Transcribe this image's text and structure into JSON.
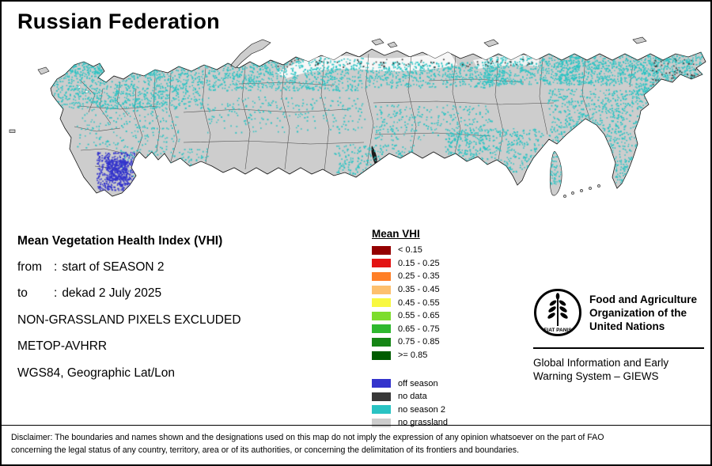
{
  "title": "Russian Federation",
  "info": {
    "heading": "Mean Vegetation Health Index (VHI)",
    "rows": [
      {
        "label": "from",
        "sep": ":",
        "value": "start of SEASON 2"
      },
      {
        "label": "to",
        "sep": ":",
        "value": "dekad 2 July 2025"
      }
    ],
    "lines": [
      "NON-GRASSLAND PIXELS EXCLUDED",
      "METOP-AVHRR",
      "WGS84, Geographic Lat/Lon"
    ]
  },
  "legend": {
    "title": "Mean VHI",
    "vhi_classes": [
      {
        "label": "< 0.15",
        "color": "#940000"
      },
      {
        "label": "0.15 - 0.25",
        "color": "#e31414"
      },
      {
        "label": "0.25 - 0.35",
        "color": "#ff7f27"
      },
      {
        "label": "0.35 - 0.45",
        "color": "#fdc06e"
      },
      {
        "label": "0.45 - 0.55",
        "color": "#f8f840"
      },
      {
        "label": "0.55 - 0.65",
        "color": "#7ddd2d"
      },
      {
        "label": "0.65 - 0.75",
        "color": "#2eb82e"
      },
      {
        "label": "0.75 - 0.85",
        "color": "#158515"
      },
      {
        "label": ">= 0.85",
        "color": "#005c00"
      }
    ],
    "categories": [
      {
        "label": "off season",
        "color": "#3333cc"
      },
      {
        "label": "no data",
        "color": "#383838"
      },
      {
        "label": "no season 2",
        "color": "#29c3c3"
      },
      {
        "label": "no grassland",
        "color": "#cdcdcd"
      }
    ]
  },
  "org": {
    "logo_icon": "fao-emblem",
    "logo_text": "FAO",
    "logo_motto": "FIAT PANIS",
    "name_lines": [
      "Food and Agriculture",
      "Organization of the",
      "United Nations"
    ],
    "subtitle_lines": [
      "Global Information and Early",
      "Warning System – GIEWS"
    ]
  },
  "disclaimer": {
    "lines": [
      "Disclaimer: The boundaries and names shown and the designations used on this map do not imply the expression of any opinion whatsoever on the part of FAO",
      "concerning the legal status of any country, territory, area or of its authorities, or concerning the delimitation of its frontiers and boundaries."
    ]
  },
  "map": {
    "land_color": "#cdcdcd",
    "season_color": "#29c3c3",
    "off_season_color": "#3333cc",
    "no_data_color": "#383838"
  }
}
